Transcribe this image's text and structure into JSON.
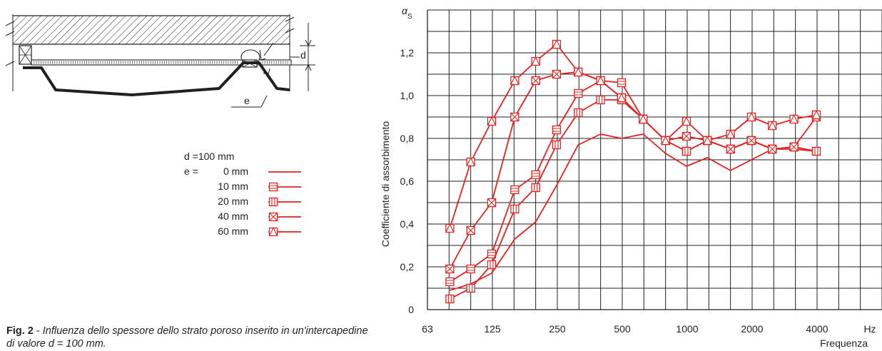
{
  "chart_data": {
    "type": "line",
    "ylabel": "Coefficiente di assorbimento",
    "y_symbol": "α",
    "y_symbol_sub": "S",
    "xlabel": "Frequenza",
    "x_unit": "Hz",
    "x_scale": "log (third-octave bands)",
    "ylim": [
      0,
      1.4
    ],
    "yticks": [
      "0",
      "0,2",
      "0,4",
      "0,6",
      "0,8",
      "1,0",
      "1,2"
    ],
    "xticks": [
      "63",
      "125",
      "250",
      "500",
      "1000",
      "2000",
      "4000"
    ],
    "grid": true,
    "x": [
      80,
      100,
      125,
      160,
      200,
      250,
      315,
      400,
      500,
      630,
      800,
      1000,
      1250,
      1600,
      2000,
      2500,
      3150,
      4000
    ],
    "series": [
      {
        "name": "0 mm",
        "marker": "none",
        "values": [
          0.09,
          0.12,
          0.17,
          0.33,
          0.41,
          0.58,
          0.77,
          0.82,
          0.8,
          0.82,
          0.73,
          0.67,
          0.71,
          0.65,
          0.7,
          0.75,
          0.75,
          0.74
        ]
      },
      {
        "name": "10 mm",
        "marker": "square-h",
        "values": [
          0.13,
          0.19,
          0.26,
          0.56,
          0.63,
          0.84,
          1.01,
          1.07,
          1.06,
          0.89,
          0.79,
          0.74,
          0.79,
          0.75,
          0.79,
          0.75,
          0.76,
          0.74
        ]
      },
      {
        "name": "20 mm",
        "marker": "square-v",
        "values": [
          0.05,
          0.1,
          0.21,
          0.47,
          0.57,
          0.77,
          0.92,
          0.98,
          0.98,
          0.89,
          0.79,
          0.74,
          0.79,
          0.75,
          0.79,
          0.75,
          0.76,
          0.74
        ]
      },
      {
        "name": "40 mm",
        "marker": "square-x",
        "values": [
          0.19,
          0.37,
          0.5,
          0.9,
          1.07,
          1.1,
          1.11,
          1.07,
          0.99,
          0.89,
          0.79,
          0.81,
          0.79,
          0.75,
          0.79,
          0.75,
          0.76,
          0.9
        ]
      },
      {
        "name": "60 mm",
        "marker": "square-tri",
        "values": [
          0.38,
          0.69,
          0.88,
          1.07,
          1.16,
          1.24,
          1.11,
          1.07,
          0.99,
          0.89,
          0.79,
          0.88,
          0.79,
          0.82,
          0.9,
          0.86,
          0.89,
          0.91
        ]
      }
    ]
  },
  "legend": {
    "d_label": "d =100 mm",
    "e_label": "e =",
    "entries": [
      "0 mm",
      "10 mm",
      "20 mm",
      "40 mm",
      "60 mm"
    ]
  },
  "diagram": {
    "label_d": "d",
    "label_e": "e"
  },
  "caption": {
    "prefix": "Fig. 2",
    "text": " - Influenza dello spessore dello strato poroso inserito in un'intercapedine di valore d = 100 mm."
  },
  "colors": {
    "series": "#e3211f",
    "ink": "#231f20",
    "panel": "#231f20"
  }
}
